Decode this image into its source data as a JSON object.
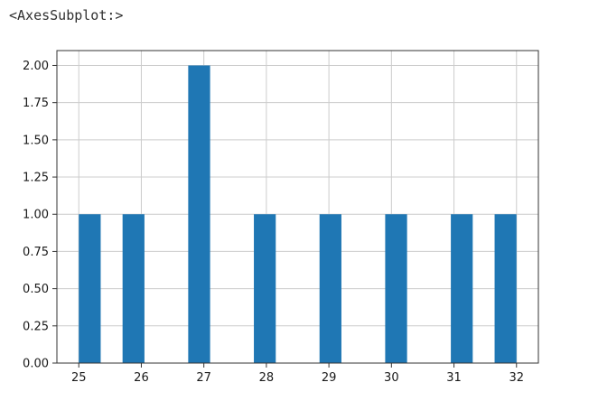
{
  "output": {
    "repr_text": "<AxesSubplot:>"
  },
  "chart_data": {
    "type": "bar",
    "chart_kind": "histogram",
    "title": "",
    "xlabel": "",
    "ylabel": "",
    "xlim": [
      24.65,
      32.35
    ],
    "ylim": [
      0,
      2.1
    ],
    "bins": [
      {
        "x0": 25.0,
        "x1": 25.35,
        "count": 1
      },
      {
        "x0": 25.7,
        "x1": 26.05,
        "count": 1
      },
      {
        "x0": 26.75,
        "x1": 27.1,
        "count": 2
      },
      {
        "x0": 27.8,
        "x1": 28.15,
        "count": 1
      },
      {
        "x0": 28.85,
        "x1": 29.2,
        "count": 1
      },
      {
        "x0": 29.9,
        "x1": 30.25,
        "count": 1
      },
      {
        "x0": 30.95,
        "x1": 31.3,
        "count": 1
      },
      {
        "x0": 31.65,
        "x1": 32.0,
        "count": 1
      }
    ],
    "x_ticks": [
      25,
      26,
      27,
      28,
      29,
      30,
      31,
      32
    ],
    "x_tick_labels": [
      "25",
      "26",
      "27",
      "28",
      "29",
      "30",
      "31",
      "32"
    ],
    "y_ticks": [
      0,
      0.25,
      0.5,
      0.75,
      1,
      1.25,
      1.5,
      1.75,
      2
    ],
    "y_tick_labels": [
      "0.00",
      "0.25",
      "0.50",
      "0.75",
      "1.00",
      "1.25",
      "1.50",
      "1.75",
      "2.00"
    ],
    "grid": true,
    "colors": {
      "bar": "#1f77b4",
      "grid": "#cccccc",
      "axes": "#333333"
    }
  }
}
